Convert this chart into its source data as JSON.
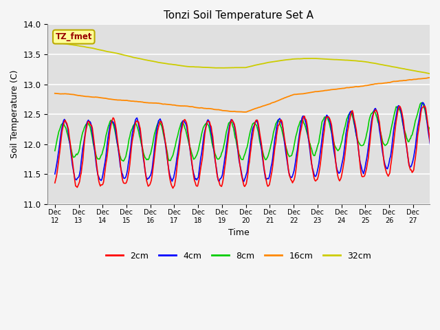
{
  "title": "Tonzi Soil Temperature Set A",
  "xlabel": "Time",
  "ylabel": "Soil Temperature (C)",
  "ylim": [
    11.0,
    14.0
  ],
  "yticks": [
    11.0,
    11.5,
    12.0,
    12.5,
    13.0,
    13.5,
    14.0
  ],
  "xtick_labels": [
    "Dec 12",
    "Dec 13",
    "Dec 14",
    "Dec 15",
    "Dec 16",
    "Dec 17",
    "Dec 18",
    "Dec 19",
    "Dec 20",
    "Dec 21",
    "Dec 22",
    "Dec 23",
    "Dec 24",
    "Dec 25",
    "Dec 26",
    "Dec 27"
  ],
  "legend_labels": [
    "2cm",
    "4cm",
    "8cm",
    "16cm",
    "32cm"
  ],
  "legend_colors": [
    "#ff0000",
    "#0000ff",
    "#00cc00",
    "#ff8800",
    "#cccc00"
  ],
  "annotation_text": "TZ_fmet",
  "annotation_bg": "#ffff99",
  "annotation_border": "#bbaa00",
  "annotation_fg": "#990000",
  "fig_bg": "#f5f5f5",
  "plot_bg": "#e0e0e0",
  "grid_color": "#ffffff"
}
